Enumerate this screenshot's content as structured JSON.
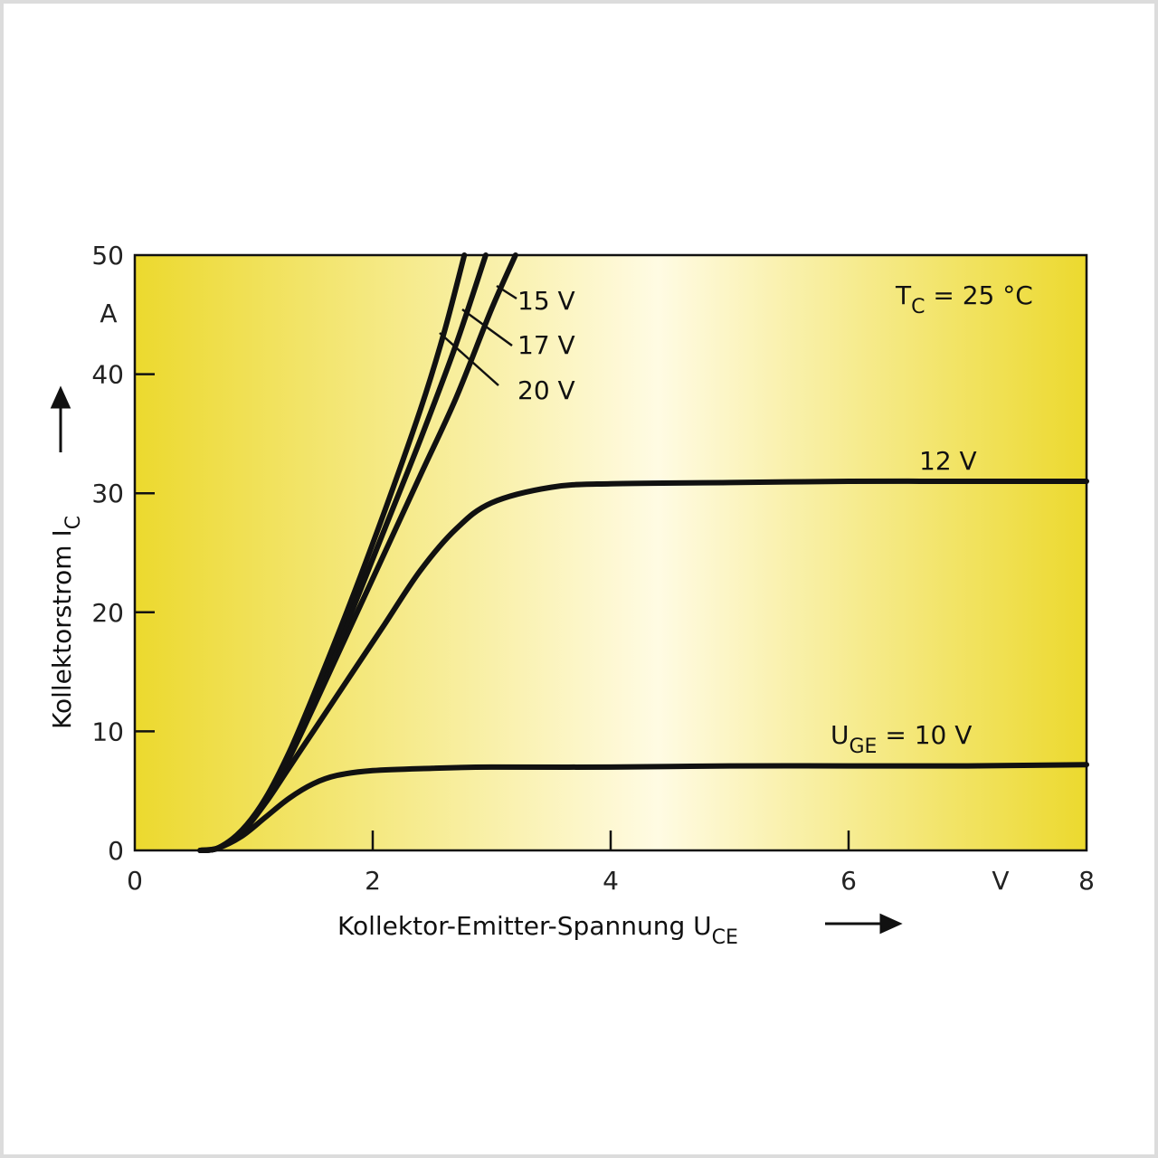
{
  "chart_data": {
    "type": "line",
    "xlabel": "Kollektor-Emitter-Spannung U",
    "xlabel_sub": "CE",
    "ylabel": "Kollektorstrom I",
    "ylabel_sub": "C",
    "x_unit": "V",
    "y_unit": "A",
    "xlim": [
      0,
      8
    ],
    "ylim": [
      0,
      50
    ],
    "x_ticks": [
      0,
      2,
      4,
      6,
      8
    ],
    "y_ticks": [
      0,
      10,
      20,
      30,
      40,
      50
    ],
    "grid": false,
    "annotation": {
      "prefix": "T",
      "sub": "C",
      "suffix": " = 25 °C"
    },
    "colors": {
      "curve": "#111111",
      "bg_edge": "#ecd92e",
      "bg_center": "#fffbe3",
      "frame": "#dcdcdc"
    },
    "series": [
      {
        "label_prefix": "U",
        "label_sub": "GE",
        "label_suffix": " = 10 V",
        "x": [
          0.55,
          0.7,
          0.9,
          1.1,
          1.3,
          1.5,
          1.7,
          2.0,
          2.5,
          3.0,
          4.0,
          5.0,
          6.0,
          7.0,
          8.0
        ],
        "y": [
          0,
          0.2,
          1.2,
          2.8,
          4.4,
          5.6,
          6.3,
          6.7,
          6.9,
          7.0,
          7.0,
          7.1,
          7.1,
          7.1,
          7.2
        ]
      },
      {
        "label": "12 V",
        "x": [
          0.55,
          0.7,
          0.9,
          1.1,
          1.3,
          1.5,
          1.8,
          2.1,
          2.4,
          2.7,
          3.0,
          3.5,
          4.0,
          5.0,
          6.0,
          7.0,
          8.0
        ],
        "y": [
          0,
          0.2,
          1.5,
          4.0,
          7.0,
          10.0,
          14.5,
          19.0,
          23.5,
          27.0,
          29.2,
          30.5,
          30.8,
          30.9,
          31.0,
          31.0,
          31.0
        ]
      },
      {
        "label": "15 V",
        "x": [
          0.55,
          0.7,
          0.9,
          1.1,
          1.3,
          1.5,
          1.8,
          2.1,
          2.4,
          2.7,
          3.0,
          3.2
        ],
        "y": [
          0,
          0.2,
          1.6,
          4.2,
          7.8,
          12.0,
          18.5,
          25.0,
          31.5,
          38.0,
          45.5,
          50.0
        ]
      },
      {
        "label": "17 V",
        "x": [
          0.55,
          0.7,
          0.9,
          1.1,
          1.3,
          1.5,
          1.8,
          2.1,
          2.4,
          2.7,
          2.95
        ],
        "y": [
          0,
          0.2,
          1.6,
          4.3,
          8.0,
          12.5,
          19.5,
          27.0,
          34.5,
          42.5,
          50.0
        ]
      },
      {
        "label": "20 V",
        "x": [
          0.55,
          0.7,
          0.9,
          1.1,
          1.3,
          1.5,
          1.8,
          2.1,
          2.4,
          2.6,
          2.77
        ],
        "y": [
          0,
          0.2,
          1.7,
          4.4,
          8.3,
          13.0,
          20.5,
          28.5,
          37.0,
          43.5,
          50.0
        ]
      }
    ]
  }
}
